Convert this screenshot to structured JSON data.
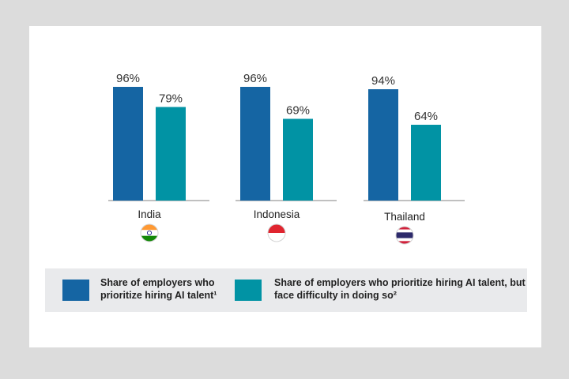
{
  "chart_data": {
    "type": "bar",
    "title": "",
    "xlabel": "",
    "ylabel": "",
    "ylim": [
      0,
      100
    ],
    "grid": false,
    "legend_position": "bottom",
    "categories": [
      "India",
      "Indonesia",
      "Thailand"
    ],
    "series": [
      {
        "name": "Share of employers who prioritize hiring AI talent¹",
        "values": [
          96,
          96,
          94
        ],
        "labels": [
          "96%",
          "96%",
          "94%"
        ],
        "color": "#1565a3"
      },
      {
        "name": "Share of employers who prioritize hiring AI talent, but face difficulty in doing so²",
        "values": [
          79,
          69,
          64
        ],
        "labels": [
          "79%",
          "69%",
          "64%"
        ],
        "color": "#0193a4"
      }
    ]
  },
  "flags": [
    "india-flag-icon",
    "indonesia-flag-icon",
    "thailand-flag-icon"
  ]
}
